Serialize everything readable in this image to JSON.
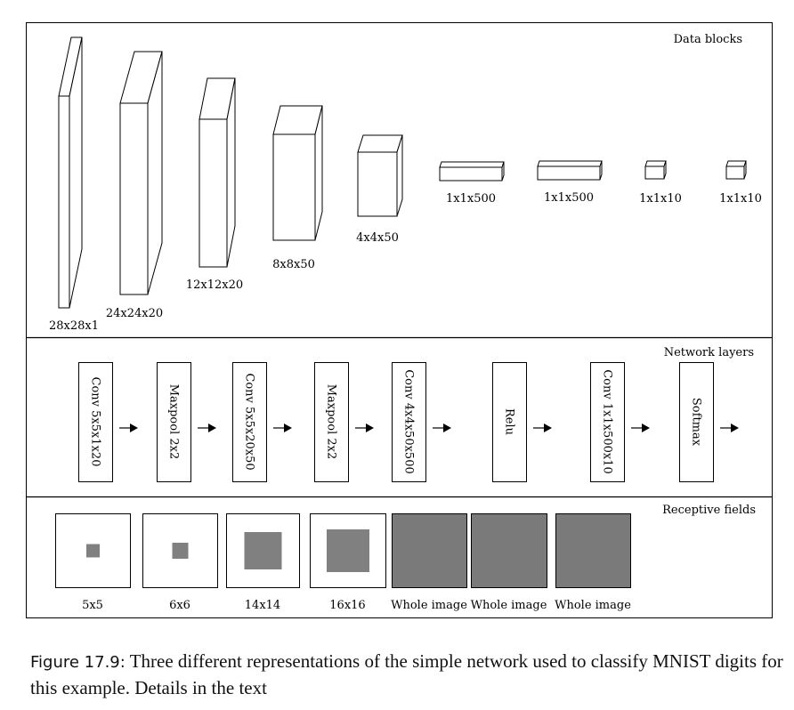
{
  "panels": {
    "data_blocks_title": "Data blocks",
    "network_layers_title": "Network layers",
    "receptive_fields_title": "Receptive fields"
  },
  "data_blocks": [
    {
      "label": "28x28x1"
    },
    {
      "label": "24x24x20"
    },
    {
      "label": "12x12x20"
    },
    {
      "label": "8x8x50"
    },
    {
      "label": "4x4x50"
    },
    {
      "label": "1x1x500"
    },
    {
      "label": "1x1x500"
    },
    {
      "label": "1x1x10"
    },
    {
      "label": "1x1x10"
    }
  ],
  "layers": [
    {
      "label": "Conv 5x5x1x20"
    },
    {
      "label": "Maxpool 2x2"
    },
    {
      "label": "Conv 5x5x20x50"
    },
    {
      "label": "Maxpool 2x2"
    },
    {
      "label": "Conv 4x4x50x500"
    },
    {
      "label": "Relu"
    },
    {
      "label": "Conv 1x1x500x10"
    },
    {
      "label": "Softmax"
    }
  ],
  "receptive_fields": [
    {
      "label": "5x5"
    },
    {
      "label": "6x6"
    },
    {
      "label": "14x14"
    },
    {
      "label": "16x16"
    },
    {
      "label": "Whole image"
    },
    {
      "label": "Whole image"
    },
    {
      "label": "Whole image"
    }
  ],
  "colors": {
    "field_fill": "#808080",
    "whole_image_fill": "#7a7a7a"
  },
  "caption": {
    "label": "Figure 17.9:",
    "text": "Three different representations of the simple network used to classify MNIST digits for this example. Details in the text"
  }
}
